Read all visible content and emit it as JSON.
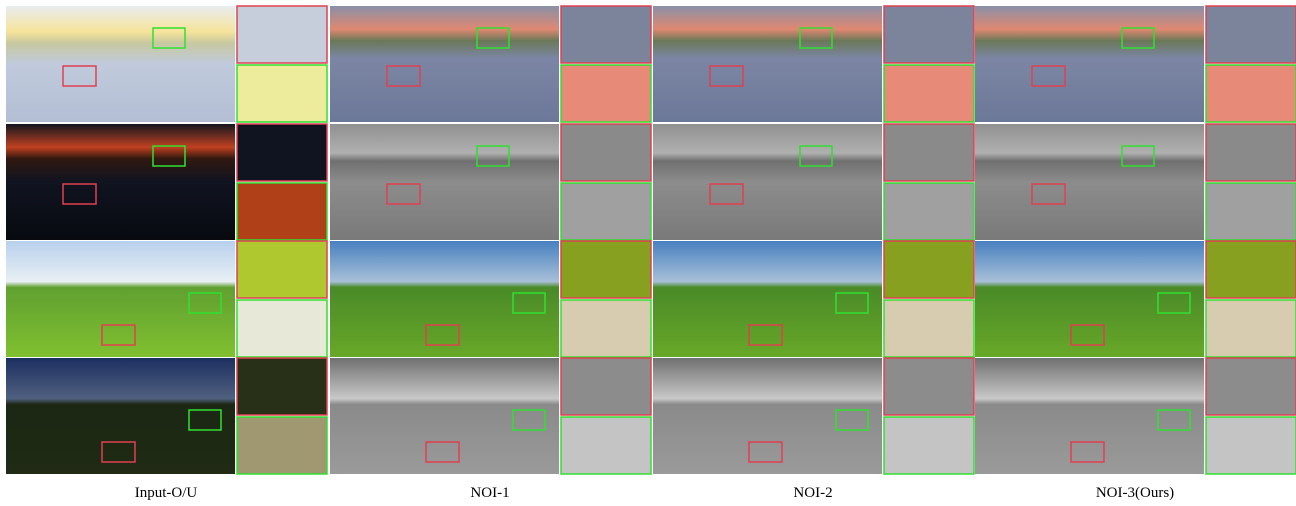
{
  "columns": [
    {
      "label": "Input-O/U"
    },
    {
      "label": "NOI-1"
    },
    {
      "label": "NOI-2"
    },
    {
      "label": "NOI-3(Ours)"
    }
  ]
}
